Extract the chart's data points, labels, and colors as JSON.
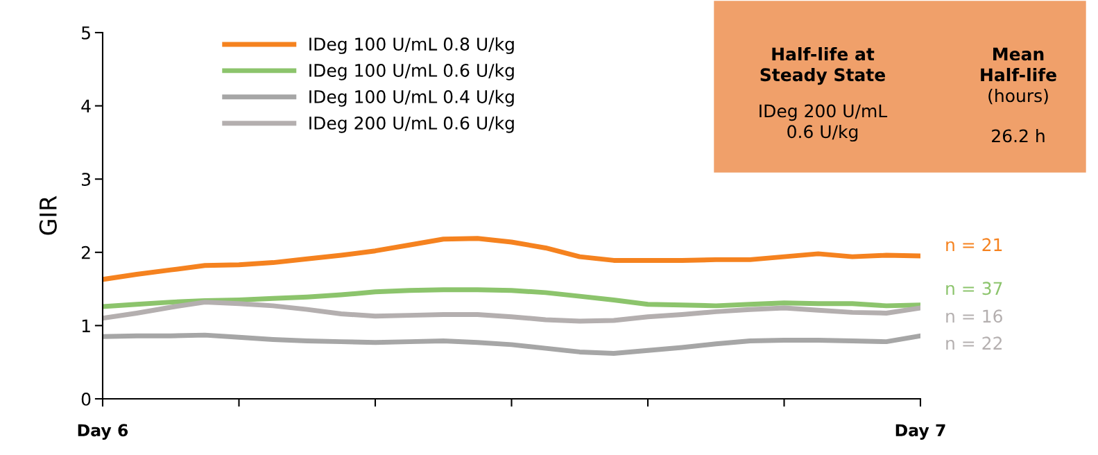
{
  "chart_data": {
    "type": "line",
    "ylabel": "GIR",
    "categories": [
      "Day 6",
      null,
      null,
      null,
      null,
      null,
      null,
      null,
      null,
      null,
      null,
      null,
      null,
      null,
      null,
      null,
      null,
      null,
      null,
      null,
      null,
      null,
      null,
      null,
      "Day 7"
    ],
    "ylim": [
      0,
      5
    ],
    "yticks": [
      0,
      1,
      2,
      3,
      4,
      5
    ],
    "grid": false,
    "legend": "top left",
    "marker": "none",
    "line_style": "solid",
    "series": [
      {
        "name": "IDeg 100 U/mL 0.8 U/kg",
        "color": "#f5821f",
        "values": [
          1.63,
          1.7,
          1.76,
          1.82,
          1.83,
          1.86,
          1.91,
          1.96,
          2.02,
          2.1,
          2.18,
          2.19,
          2.14,
          2.06,
          1.94,
          1.89,
          1.89,
          1.89,
          1.9,
          1.9,
          1.94,
          1.98,
          1.94,
          1.96,
          1.95
        ]
      },
      {
        "name": "IDeg 100 U/mL 0.6 U/kg",
        "color": "#8cc46c",
        "values": [
          1.26,
          1.29,
          1.32,
          1.34,
          1.35,
          1.37,
          1.39,
          1.42,
          1.46,
          1.48,
          1.49,
          1.49,
          1.48,
          1.45,
          1.4,
          1.35,
          1.29,
          1.28,
          1.27,
          1.29,
          1.31,
          1.3,
          1.3,
          1.27,
          1.28
        ]
      },
      {
        "name": "IDeg 100 U/mL 0.4 U/kg",
        "color": "#a6a6a6",
        "values": [
          0.85,
          0.86,
          0.86,
          0.87,
          0.84,
          0.81,
          0.79,
          0.78,
          0.77,
          0.78,
          0.79,
          0.77,
          0.74,
          0.69,
          0.64,
          0.62,
          0.66,
          0.7,
          0.75,
          0.79,
          0.8,
          0.8,
          0.79,
          0.78,
          0.86
        ]
      },
      {
        "name": "IDeg 200 U/mL 0.6 U/kg",
        "color": "#b4afaf",
        "values": [
          1.1,
          1.17,
          1.25,
          1.32,
          1.3,
          1.27,
          1.22,
          1.16,
          1.13,
          1.14,
          1.15,
          1.15,
          1.12,
          1.08,
          1.06,
          1.07,
          1.12,
          1.15,
          1.19,
          1.22,
          1.24,
          1.21,
          1.18,
          1.17,
          1.24
        ]
      }
    ],
    "annotations": [
      "n = 21",
      "n = 37",
      "n = 16",
      "n = 22",
      "Half-life at\nSteady State",
      "IDeg 200 U/mL\n0.6 U/kg",
      "Mean\nHalf-life",
      "(hours)",
      "26.2 h"
    ]
  }
}
